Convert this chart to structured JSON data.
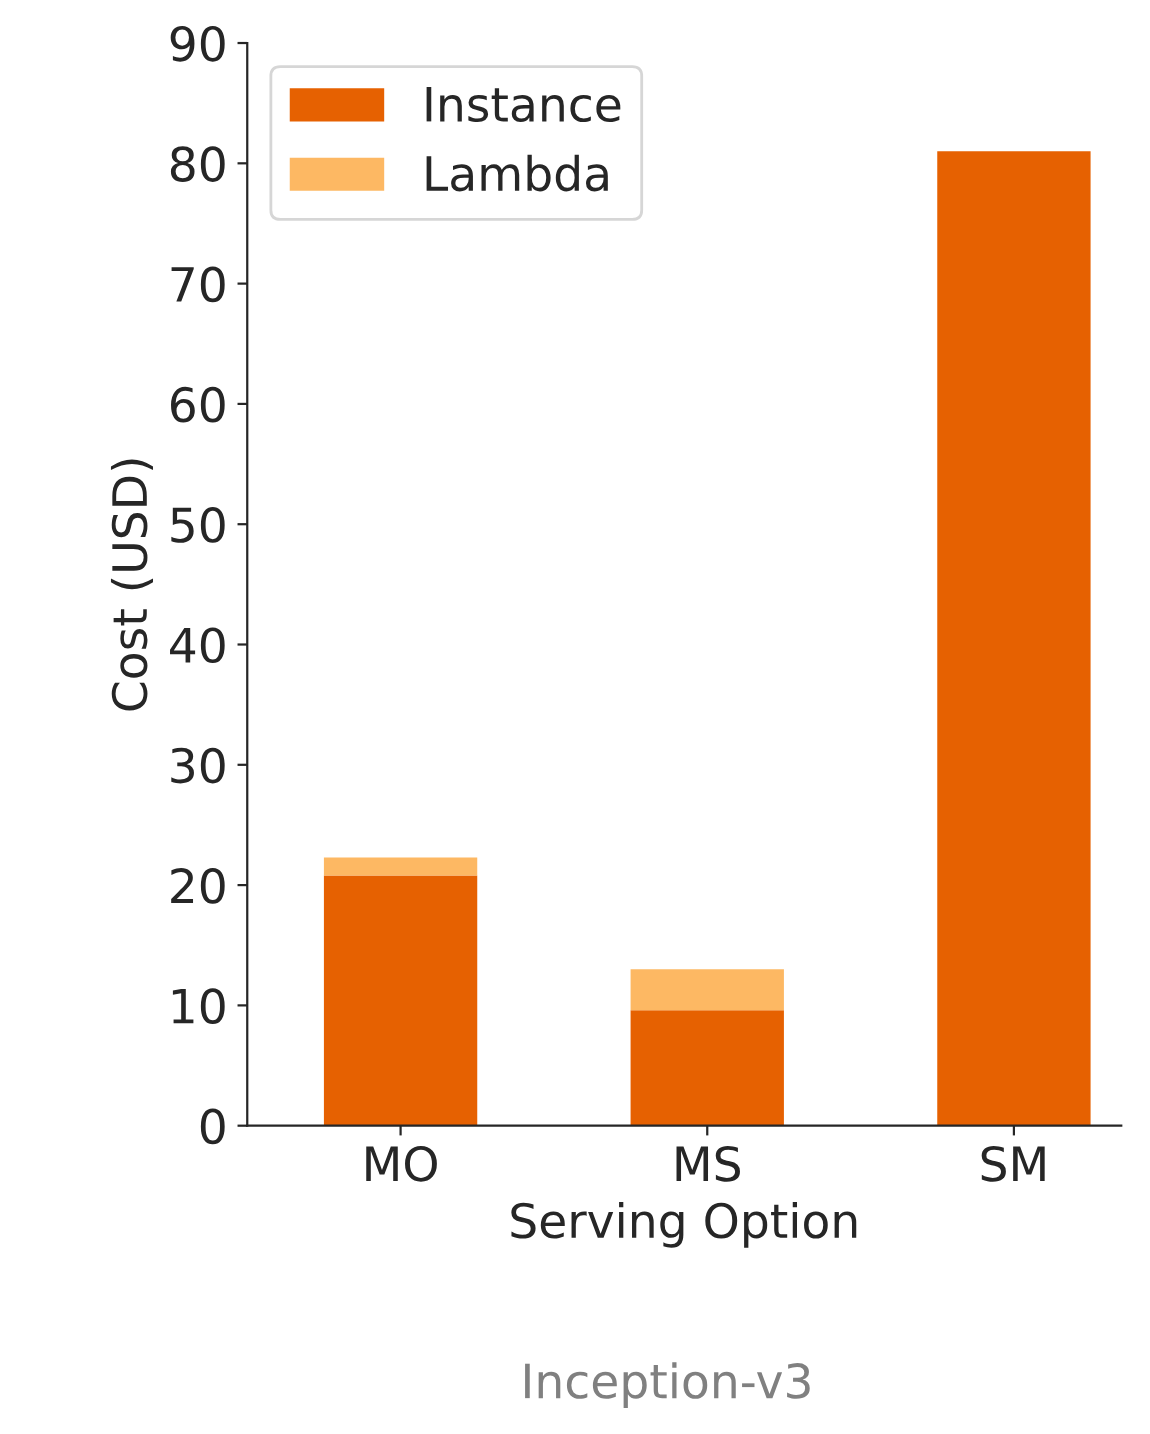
{
  "chart_data": {
    "type": "bar",
    "stacked": true,
    "xlabel": "Serving Option",
    "ylabel": "Cost (USD)",
    "categories": [
      "MO",
      "MS",
      "SM"
    ],
    "series": [
      {
        "name": "Instance",
        "color": "#e66101",
        "values": [
          20.8,
          9.6,
          81
        ]
      },
      {
        "name": "Lambda",
        "color": "#fdb863",
        "values": [
          1.5,
          3.4,
          null
        ]
      }
    ],
    "ylim": [
      0,
      90
    ],
    "yticks": [
      0,
      10,
      20,
      30,
      40,
      50,
      60,
      70,
      80,
      90
    ],
    "legend": "top left",
    "grid": false,
    "annotations": [
      "Inception-v3"
    ]
  }
}
